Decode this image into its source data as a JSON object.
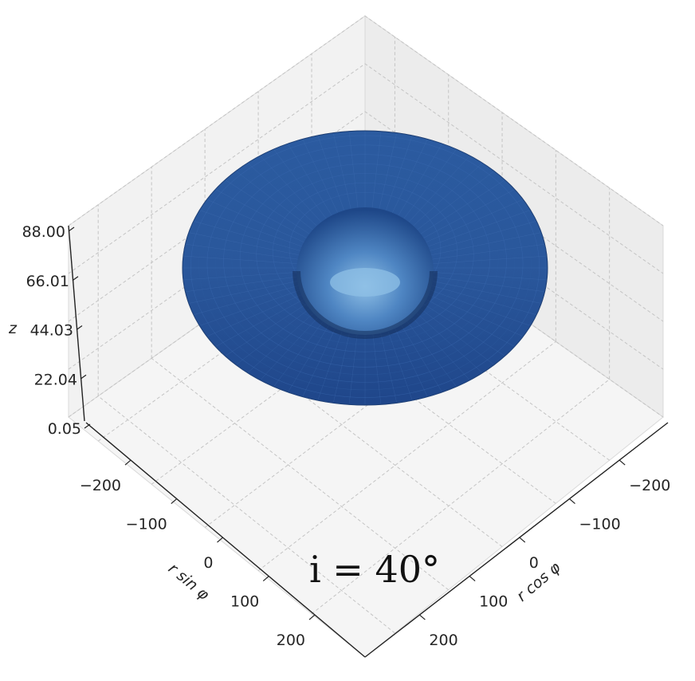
{
  "chart_data": {
    "type": "surface3d",
    "annotation": "i = 40°",
    "colors": {
      "surface_dark": "#173468",
      "surface_mid": "#2d5da3",
      "surface_light": "#6ea4d6"
    },
    "x_axis": {
      "label": "r cos φ",
      "ticks": [
        -200,
        -100,
        0,
        100,
        200
      ],
      "tick_labels": [
        "−200",
        "−100",
        "0",
        "100",
        "200"
      ]
    },
    "y_axis": {
      "label": "r sin φ",
      "ticks": [
        -200,
        -100,
        0,
        100,
        200
      ],
      "tick_labels": [
        "−200",
        "−100",
        "0",
        "100",
        "200"
      ]
    },
    "z_axis": {
      "label": "z",
      "ticks": [
        0.05,
        22.04,
        44.03,
        66.01,
        88.0
      ],
      "tick_labels": [
        "0.05",
        "22.04",
        "44.03",
        "66.01",
        "88.00"
      ]
    },
    "surface": {
      "shape": "torus",
      "r_major": 130,
      "r_minor": 120,
      "z_min": 0.05,
      "z_max": 88.0
    },
    "grid": true
  }
}
